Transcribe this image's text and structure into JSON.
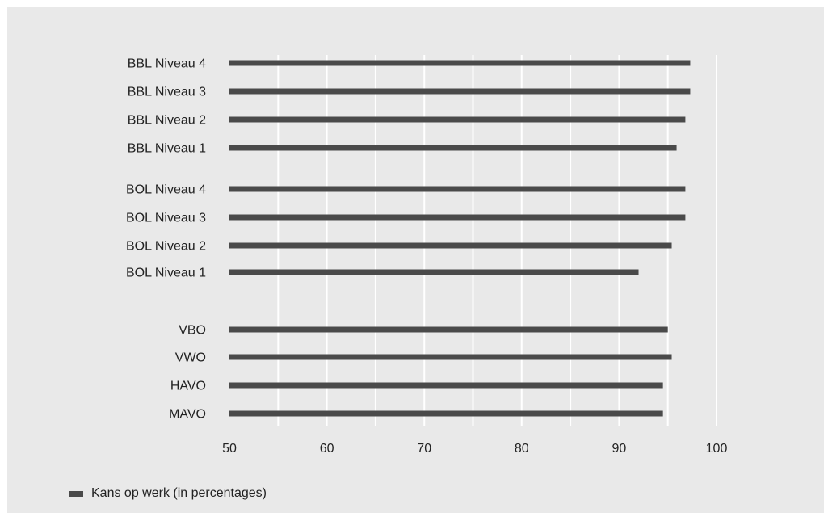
{
  "chart_data": {
    "type": "bar",
    "orientation": "horizontal",
    "categories": [
      "BBL Niveau 4",
      "BBL Niveau 3",
      "BBL Niveau 2",
      "BBL Niveau 1",
      "BOL Niveau 4",
      "BOL Niveau 3",
      "BOL Niveau 2",
      "BOL Niveau 1",
      "VBO",
      "VWO",
      "HAVO",
      "MAVO"
    ],
    "series": [
      {
        "name": "Kans op werk (in percentages)",
        "values": [
          97.3,
          97.3,
          96.8,
          95.9,
          96.8,
          96.8,
          95.4,
          92.0,
          95.0,
          95.4,
          94.5,
          94.5
        ],
        "color": "#4a4a4a"
      }
    ],
    "xlim": [
      50,
      100
    ],
    "xticks": [
      50,
      60,
      70,
      80,
      90,
      100
    ],
    "grid": true,
    "gridlines_color": "#ffffff",
    "background_color": "#e9e9e9",
    "legend_position": "bottom-left",
    "title": "",
    "xlabel": "",
    "ylabel": ""
  }
}
